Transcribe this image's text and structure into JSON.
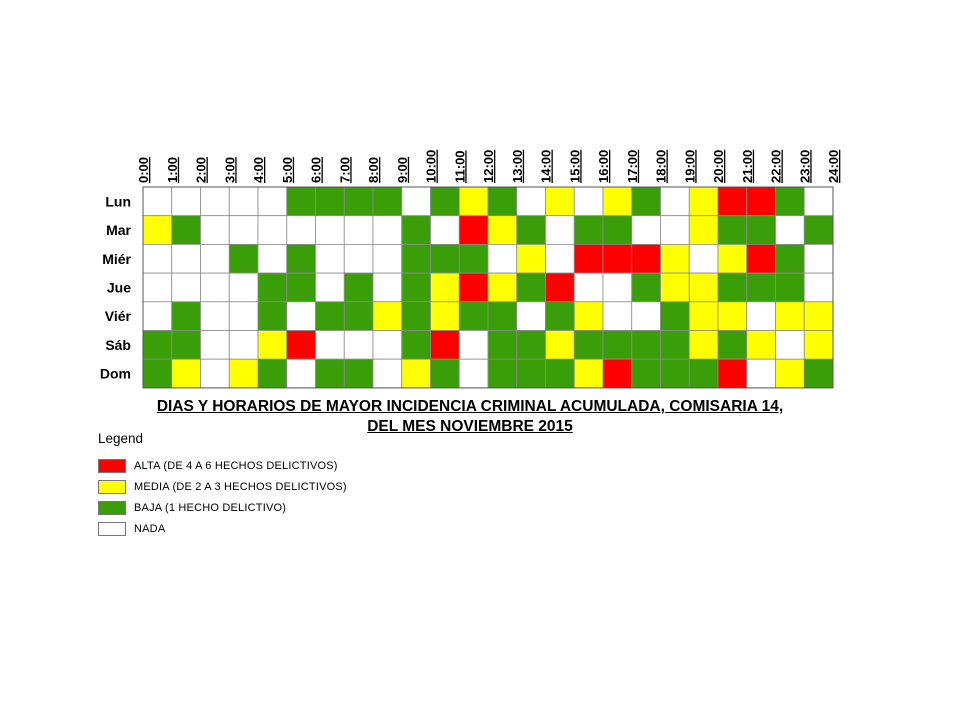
{
  "chart_data": {
    "type": "heatmap",
    "title_line1": "DIAS Y HORARIOS DE MAYOR INCIDENCIA CRIMINAL ACUMULADA, COMISARIA 14,",
    "title_line2": "DEL MES NOVIEMBRE 2015",
    "hours": [
      "0:00",
      "1:00",
      "2:00",
      "3:00",
      "4:00",
      "5:00",
      "6:00",
      "7:00",
      "8:00",
      "9:00",
      "10:00",
      "11:00",
      "12:00",
      "13:00",
      "14:00",
      "15:00",
      "16:00",
      "17:00",
      "18:00",
      "19:00",
      "20:00",
      "21:00",
      "22:00",
      "23:00",
      "24:00"
    ],
    "days": [
      "Lun",
      "Mar",
      "Miér",
      "Jue",
      "Viér",
      "Sáb",
      "Dom"
    ],
    "levels_legend": "0 = NADA, 1 = BAJA, 2 = MEDIA, 3 = ALTA",
    "grid": [
      [
        0,
        0,
        0,
        0,
        0,
        1,
        1,
        1,
        1,
        0,
        1,
        2,
        1,
        0,
        2,
        0,
        2,
        1,
        0,
        2,
        3,
        3,
        1,
        0
      ],
      [
        2,
        1,
        0,
        0,
        0,
        0,
        0,
        0,
        0,
        1,
        0,
        3,
        2,
        1,
        0,
        1,
        1,
        0,
        0,
        2,
        1,
        1,
        0,
        1
      ],
      [
        0,
        0,
        0,
        1,
        0,
        1,
        0,
        0,
        0,
        1,
        1,
        1,
        0,
        2,
        0,
        3,
        3,
        3,
        2,
        0,
        2,
        3,
        1,
        0
      ],
      [
        0,
        0,
        0,
        0,
        1,
        1,
        0,
        1,
        0,
        1,
        2,
        3,
        2,
        1,
        3,
        0,
        0,
        1,
        2,
        2,
        1,
        1,
        1,
        0
      ],
      [
        0,
        1,
        0,
        0,
        1,
        0,
        1,
        1,
        2,
        1,
        2,
        1,
        1,
        0,
        1,
        2,
        0,
        0,
        1,
        2,
        2,
        0,
        2,
        2
      ],
      [
        1,
        1,
        0,
        0,
        2,
        3,
        0,
        0,
        0,
        1,
        3,
        0,
        1,
        1,
        2,
        1,
        1,
        1,
        1,
        2,
        1,
        2,
        0,
        2
      ],
      [
        1,
        2,
        0,
        2,
        1,
        0,
        1,
        1,
        0,
        2,
        1,
        0,
        1,
        1,
        1,
        2,
        3,
        1,
        1,
        1,
        3,
        0,
        2,
        1
      ]
    ]
  },
  "legend": {
    "title": "Legend",
    "items": [
      {
        "label": "ALTA (DE 4 A 6 HECHOS DELICTIVOS)",
        "color": "#ff0000"
      },
      {
        "label": "MEDIA (DE 2 A 3 HECHOS DELICTIVOS)",
        "color": "#ffff00"
      },
      {
        "label": "BAJA (1 HECHO DELICTIVO)",
        "color": "#3a9e08"
      },
      {
        "label": "NADA",
        "color": "#ffffff"
      }
    ]
  },
  "level_colors": [
    "#ffffff",
    "#3a9e08",
    "#ffff00",
    "#ff0000"
  ]
}
